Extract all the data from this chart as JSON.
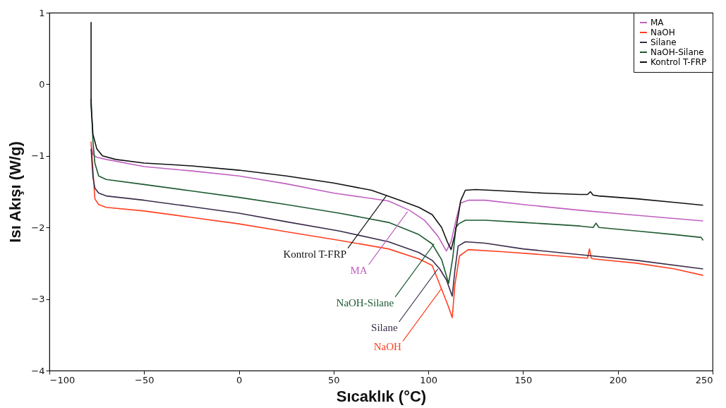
{
  "chart_data": {
    "type": "line",
    "xlabel": "Sıcaklık (°C)",
    "ylabel": "Isı Akışı (W/g)",
    "xlim": [
      -100,
      250
    ],
    "ylim": [
      -4,
      1
    ],
    "xticks": [
      -100,
      -50,
      0,
      50,
      100,
      150,
      200,
      250
    ],
    "yticks": [
      -4,
      -3,
      -2,
      -1,
      0,
      1
    ],
    "grid": false,
    "legend": "top right",
    "series": [
      {
        "name": "MA",
        "color": "#c060c0",
        "x": [
          -78,
          -77,
          -75,
          -70,
          -50,
          -25,
          0,
          25,
          50,
          79,
          90,
          98,
          105,
          109.5,
          112,
          115,
          117,
          121,
          130,
          150,
          180,
          210,
          245
        ],
        "values": [
          -0.85,
          -0.98,
          -1.02,
          -1.05,
          -1.15,
          -1.21,
          -1.28,
          -1.39,
          -1.52,
          -1.63,
          -1.76,
          -1.9,
          -2.12,
          -2.33,
          -2.2,
          -1.85,
          -1.66,
          -1.62,
          -1.62,
          -1.68,
          -1.76,
          -1.83,
          -1.91
        ]
      },
      {
        "name": "NaOH",
        "color": "#ff4020",
        "x": [
          -78,
          -77,
          -76,
          -74,
          -70,
          -50,
          -25,
          0,
          25,
          53,
          79,
          95,
          102,
          108,
          110.5,
          112.6,
          114,
          116.4,
          121,
          140,
          160,
          184,
          185,
          186,
          187,
          210,
          230,
          245
        ],
        "values": [
          -0.8,
          -1.2,
          -1.6,
          -1.68,
          -1.72,
          -1.77,
          -1.86,
          -1.95,
          -2.06,
          -2.18,
          -2.3,
          -2.44,
          -2.53,
          -2.93,
          -3.1,
          -3.26,
          -2.8,
          -2.4,
          -2.31,
          -2.34,
          -2.38,
          -2.43,
          -2.3,
          -2.43,
          -2.44,
          -2.5,
          -2.58,
          -2.67
        ]
      },
      {
        "name": "Silane",
        "color": "#3a2d4a",
        "x": [
          -78,
          -77,
          -76,
          -74,
          -70,
          -50,
          -25,
          0,
          25,
          53,
          79,
          95,
          102,
          106,
          109.5,
          112.6,
          114,
          115.7,
          119.5,
          130,
          150,
          180,
          210,
          245
        ],
        "values": [
          -0.9,
          -1.3,
          -1.45,
          -1.52,
          -1.56,
          -1.62,
          -1.71,
          -1.8,
          -1.92,
          -2.05,
          -2.2,
          -2.35,
          -2.46,
          -2.58,
          -2.73,
          -2.96,
          -2.6,
          -2.26,
          -2.2,
          -2.22,
          -2.3,
          -2.38,
          -2.46,
          -2.58
        ]
      },
      {
        "name": "NaOH-Silane",
        "color": "#1e5a32",
        "x": [
          -78,
          -77,
          -76,
          -74,
          -70,
          -50,
          -25,
          0,
          25,
          53,
          79,
          95,
          102,
          107,
          110.7,
          113,
          114.5,
          116,
          119.5,
          130,
          150,
          180,
          187,
          188.5,
          190,
          210,
          230,
          244,
          245
        ],
        "values": [
          -0.2,
          -0.8,
          -1.1,
          -1.28,
          -1.33,
          -1.4,
          -1.49,
          -1.58,
          -1.68,
          -1.8,
          -1.93,
          -2.1,
          -2.23,
          -2.45,
          -2.78,
          -2.4,
          -2.0,
          -1.95,
          -1.9,
          -1.9,
          -1.93,
          -1.98,
          -2.0,
          -1.94,
          -2.0,
          -2.05,
          -2.1,
          -2.14,
          -2.18
        ]
      },
      {
        "name": "Kontrol T-FRP",
        "color": "#111111",
        "x": [
          -78,
          -78,
          -77,
          -75,
          -72,
          -65,
          -50,
          -25,
          0,
          25,
          50,
          70,
          85,
          95,
          102,
          107,
          110,
          112,
          114,
          116,
          117,
          119.5,
          125,
          140,
          160,
          180,
          184,
          185.5,
          187,
          190,
          210,
          230,
          245
        ],
        "values": [
          0.87,
          -0.3,
          -0.7,
          -0.9,
          -1.0,
          -1.05,
          -1.1,
          -1.14,
          -1.2,
          -1.28,
          -1.38,
          -1.48,
          -1.62,
          -1.72,
          -1.82,
          -2.0,
          -2.2,
          -2.31,
          -2.1,
          -1.8,
          -1.63,
          -1.48,
          -1.47,
          -1.49,
          -1.52,
          -1.54,
          -1.54,
          -1.5,
          -1.55,
          -1.56,
          -1.6,
          -1.65,
          -1.69
        ]
      }
    ],
    "annotations": [
      {
        "text": "MA",
        "x": 89,
        "y": -1.78
      },
      {
        "text": "NaOH",
        "x": 107,
        "y": -2.85
      },
      {
        "text": "Silane",
        "x": 105,
        "y": -2.58
      },
      {
        "text": "NaOH-Silane",
        "x": 103,
        "y": -2.23
      },
      {
        "text": "Kontrol T-FRP",
        "x": 78,
        "y": -1.55
      }
    ]
  }
}
